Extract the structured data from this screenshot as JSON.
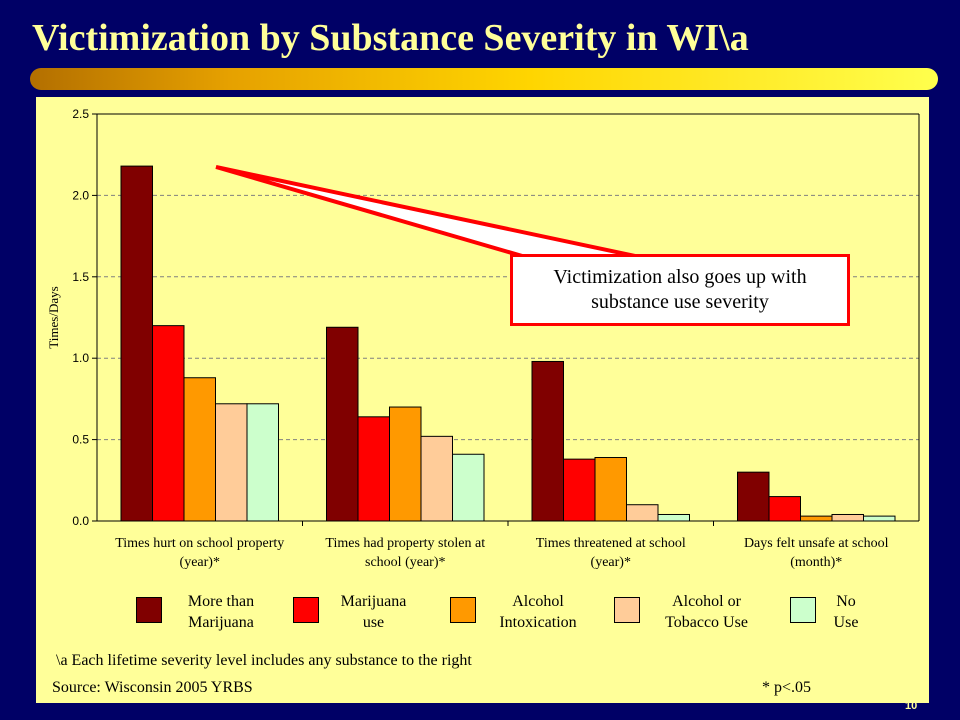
{
  "slide": {
    "title": "Victimization by Substance Severity in WI\\a",
    "page_number": "10"
  },
  "colors": {
    "background": "#000066",
    "title_text": "#ffff99",
    "chart_background": "#ffff99",
    "callout_border": "#ff0000",
    "arrow": "#ff0000",
    "gridline": "#808080"
  },
  "callout": {
    "text": "Victimization also goes up with substance use severity"
  },
  "footnote": "\\a  Each lifetime severity level includes any substance to the right",
  "source": "Source: Wisconsin 2005 YRBS",
  "significance_note": "* p<.05",
  "chart_data": {
    "type": "bar",
    "title": "",
    "xlabel": "",
    "ylabel": "Times/Days",
    "ylim": [
      0,
      2.5
    ],
    "yticks": [
      "0.0",
      "0.5",
      "1.0",
      "1.5",
      "2.0",
      "2.5"
    ],
    "grid": true,
    "legend_position": "bottom",
    "categories": [
      [
        "Times hurt on school property",
        "(year)*"
      ],
      [
        "Times had property stolen at",
        "school (year)*"
      ],
      [
        "Times threatened at school",
        "(year)*"
      ],
      [
        "Days felt unsafe at school",
        "(month)*"
      ]
    ],
    "series": [
      {
        "name": "More than\nMarijuana",
        "color": "#800000",
        "values": [
          2.18,
          1.19,
          0.98,
          0.3
        ]
      },
      {
        "name": "Marijuana\nuse",
        "color": "#ff0000",
        "values": [
          1.2,
          0.64,
          0.38,
          0.15
        ]
      },
      {
        "name": "Alcohol\nIntoxication",
        "color": "#ff9900",
        "values": [
          0.88,
          0.7,
          0.39,
          0.03
        ]
      },
      {
        "name": "Alcohol or\nTobacco Use",
        "color": "#ffcc99",
        "values": [
          0.72,
          0.52,
          0.1,
          0.04
        ]
      },
      {
        "name": "No\nUse",
        "color": "#ccffcc",
        "values": [
          0.72,
          0.41,
          0.04,
          0.03
        ]
      }
    ]
  }
}
